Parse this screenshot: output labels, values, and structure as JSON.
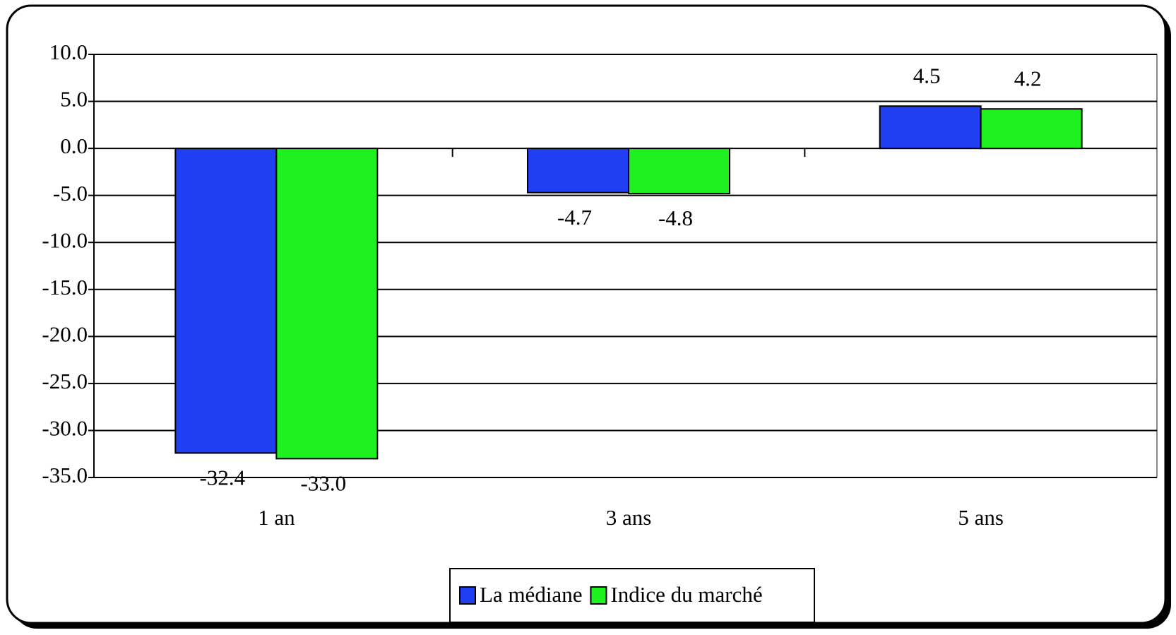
{
  "chart_data": {
    "type": "bar",
    "categories": [
      "1 an",
      "3 ans",
      "5 ans"
    ],
    "series": [
      {
        "name": "La médiane",
        "color": "#1f3ff0",
        "values": [
          -32.4,
          -4.7,
          4.5
        ],
        "value_labels": [
          "-32.4",
          "-4.7",
          "4.5"
        ]
      },
      {
        "name": "Indice du marché",
        "color": "#1ff01f",
        "values": [
          -33.0,
          -4.8,
          4.2
        ],
        "value_labels": [
          "-33.0",
          "-4.8",
          "4.2"
        ]
      }
    ],
    "ylim": [
      -35,
      10
    ],
    "yticks": [
      {
        "value": 10,
        "label": "10.0"
      },
      {
        "value": 5,
        "label": "5.0"
      },
      {
        "value": 0,
        "label": "0.0"
      },
      {
        "value": -5,
        "label": "-5.0"
      },
      {
        "value": -10,
        "label": "-10.0"
      },
      {
        "value": -15,
        "label": "-15.0"
      },
      {
        "value": -20,
        "label": "-20.0"
      },
      {
        "value": -25,
        "label": "-25.0"
      },
      {
        "value": -30,
        "label": "-30.0"
      },
      {
        "value": -35,
        "label": "-35.0"
      }
    ],
    "grid": true,
    "legend": "bottom"
  }
}
